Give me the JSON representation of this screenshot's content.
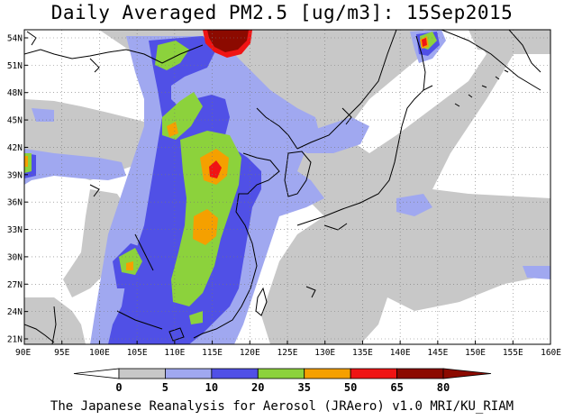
{
  "title": "Daily Averaged PM2.5 [ug/m3]: 15Sep2015",
  "footer": "The Japanese Reanalysis for Aerosol (JRAero) v1.0 MRI/KU_RIAM",
  "lon_labels": [
    "90E",
    "95E",
    "100E",
    "105E",
    "110E",
    "115E",
    "120E",
    "125E",
    "130E",
    "135E",
    "140E",
    "145E",
    "150E",
    "155E",
    "160E"
  ],
  "lat_labels": [
    "21N",
    "24N",
    "27N",
    "30N",
    "33N",
    "36N",
    "39N",
    "42N",
    "45N",
    "48N",
    "51N",
    "54N"
  ],
  "colorbar": {
    "levels": [
      "0",
      "5",
      "10",
      "20",
      "35",
      "50",
      "65",
      "80"
    ],
    "colors": [
      "#ffffff",
      "#c8c8c8",
      "#a0a8f0",
      "#5050e6",
      "#8cd23c",
      "#f5a000",
      "#f01414",
      "#8c0a00"
    ]
  }
}
